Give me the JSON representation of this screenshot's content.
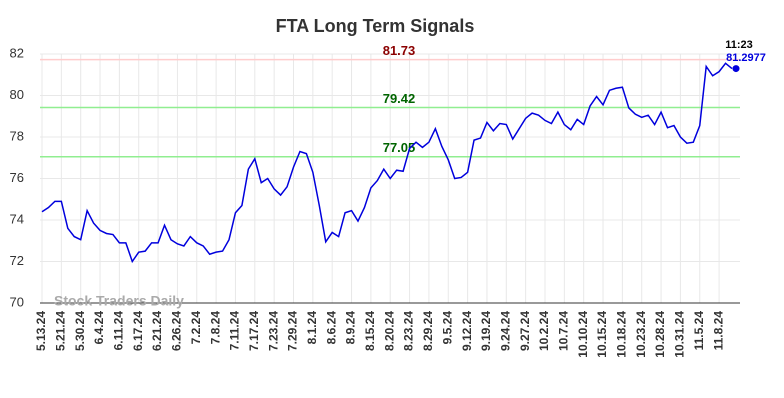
{
  "chart_data": {
    "type": "line",
    "title": "FTA Long Term Signals",
    "watermark": "Stock Traders Daily",
    "categories": [
      "5.13.24",
      null,
      null,
      "5.21.24",
      null,
      null,
      "5.30.24",
      null,
      null,
      "6.4.24",
      null,
      null,
      "6.11.24",
      null,
      null,
      "6.17.24",
      null,
      null,
      "6.21.24",
      null,
      null,
      "6.26.24",
      null,
      null,
      "7.2.24",
      null,
      null,
      "7.8.24",
      null,
      null,
      "7.11.24",
      null,
      null,
      "7.17.24",
      null,
      null,
      "7.23.24",
      null,
      null,
      "7.29.24",
      null,
      null,
      "8.1.24",
      null,
      null,
      "8.6.24",
      null,
      null,
      "8.9.24",
      null,
      null,
      "8.15.24",
      null,
      null,
      "8.20.24",
      null,
      null,
      "8.23.24",
      null,
      null,
      "8.29.24",
      null,
      null,
      "9.5.24",
      null,
      null,
      "9.12.24",
      null,
      null,
      "9.19.24",
      null,
      null,
      "9.24.24",
      null,
      null,
      "9.27.24",
      null,
      null,
      "10.2.24",
      null,
      null,
      "10.7.24",
      null,
      null,
      "10.10.24",
      null,
      null,
      "10.15.24",
      null,
      null,
      "10.18.24",
      null,
      null,
      "10.23.24",
      null,
      null,
      "10.28.24",
      null,
      null,
      "10.31.24",
      null,
      null,
      "11.5.24",
      null,
      null,
      "11.8.24",
      null,
      null
    ],
    "values": [
      74.4,
      74.6,
      74.9,
      74.9,
      73.6,
      73.2,
      73.05,
      74.45,
      73.85,
      73.5,
      73.35,
      73.3,
      72.9,
      72.9,
      72.0,
      72.45,
      72.5,
      72.9,
      72.9,
      73.75,
      73.05,
      72.85,
      72.75,
      73.2,
      72.9,
      72.75,
      72.35,
      72.45,
      72.5,
      73.05,
      74.35,
      74.7,
      76.45,
      76.95,
      75.8,
      76.0,
      75.5,
      75.2,
      75.6,
      76.55,
      77.3,
      77.2,
      76.3,
      74.7,
      72.95,
      73.4,
      73.2,
      74.35,
      74.45,
      73.95,
      74.6,
      75.55,
      75.9,
      76.45,
      76.0,
      76.4,
      76.35,
      77.45,
      77.75,
      77.5,
      77.75,
      78.4,
      77.55,
      76.9,
      76.0,
      76.05,
      76.3,
      77.85,
      77.95,
      78.7,
      78.3,
      78.65,
      78.6,
      77.9,
      78.4,
      78.9,
      79.15,
      79.05,
      78.8,
      78.65,
      79.2,
      78.6,
      78.35,
      78.85,
      78.6,
      79.5,
      79.95,
      79.55,
      80.25,
      80.35,
      80.4,
      79.4,
      79.1,
      78.95,
      79.05,
      78.6,
      79.2,
      78.45,
      78.55,
      78.0,
      77.7,
      77.75,
      78.55,
      81.4,
      80.95,
      81.15,
      81.55,
      81.2977
    ],
    "color": "#0000dd",
    "ylim": [
      70,
      82
    ],
    "yticks": [
      70,
      72,
      74,
      76,
      78,
      80,
      82
    ],
    "grid": true,
    "hlines": [
      {
        "value": 81.73,
        "label": "81.73",
        "color": "#ffcccc",
        "label_color": "#8b0000"
      },
      {
        "value": 79.42,
        "label": "79.42",
        "color": "#90ee90",
        "label_color": "#006400"
      },
      {
        "value": 77.05,
        "label": "77.05",
        "color": "#90ee90",
        "label_color": "#006400"
      }
    ],
    "last_point": {
      "time": "11:23",
      "value": 81.2977
    }
  }
}
